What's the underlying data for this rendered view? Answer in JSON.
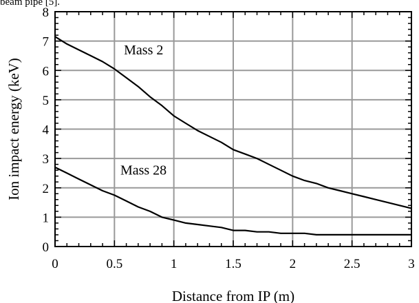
{
  "top_text": "beam pipe [5].",
  "chart_data": {
    "type": "line",
    "title": "",
    "xlabel": "Distance from IP (m)",
    "ylabel": "Ion impact energy (keV)",
    "xlim": [
      0,
      3
    ],
    "ylim": [
      0,
      8
    ],
    "x_ticks": [
      0,
      0.5,
      1,
      1.5,
      2,
      2.5,
      3
    ],
    "x_tick_labels": [
      "0",
      "0.5",
      "1",
      "1.5",
      "2",
      "2.5",
      "3"
    ],
    "y_ticks": [
      0,
      1,
      2,
      3,
      4,
      5,
      6,
      7,
      8
    ],
    "y_tick_labels": [
      "0",
      "1",
      "2",
      "3",
      "4",
      "5",
      "6",
      "7",
      "8"
    ],
    "grid": true,
    "legend": "none",
    "series": [
      {
        "name": "Mass 2",
        "label_at": [
          0.58,
          6.55
        ],
        "x": [
          0,
          0.1,
          0.2,
          0.3,
          0.4,
          0.5,
          0.6,
          0.7,
          0.8,
          0.9,
          1.0,
          1.1,
          1.2,
          1.3,
          1.4,
          1.5,
          1.6,
          1.7,
          1.8,
          1.9,
          2.0,
          2.1,
          2.2,
          2.3,
          2.4,
          2.5,
          2.6,
          2.7,
          2.8,
          2.9,
          3.0
        ],
        "y": [
          7.15,
          6.9,
          6.7,
          6.5,
          6.3,
          6.05,
          5.75,
          5.45,
          5.1,
          4.8,
          4.45,
          4.2,
          3.95,
          3.75,
          3.55,
          3.3,
          3.15,
          3.0,
          2.8,
          2.6,
          2.4,
          2.25,
          2.15,
          2.0,
          1.9,
          1.8,
          1.7,
          1.6,
          1.5,
          1.4,
          1.3
        ]
      },
      {
        "name": "Mass 28",
        "label_at": [
          0.55,
          2.45
        ],
        "x": [
          0,
          0.1,
          0.2,
          0.3,
          0.4,
          0.5,
          0.6,
          0.7,
          0.8,
          0.9,
          1.0,
          1.1,
          1.2,
          1.3,
          1.4,
          1.5,
          1.6,
          1.7,
          1.8,
          1.9,
          2.0,
          2.1,
          2.2,
          2.3,
          2.4,
          2.5,
          2.6,
          2.7,
          2.8,
          2.9,
          3.0
        ],
        "y": [
          2.7,
          2.5,
          2.3,
          2.1,
          1.9,
          1.75,
          1.55,
          1.35,
          1.2,
          1.0,
          0.9,
          0.8,
          0.75,
          0.7,
          0.65,
          0.55,
          0.55,
          0.5,
          0.5,
          0.45,
          0.45,
          0.45,
          0.4,
          0.4,
          0.4,
          0.4,
          0.4,
          0.4,
          0.4,
          0.4,
          0.4
        ]
      }
    ],
    "line_color": "#000000",
    "grid_color": "#999999"
  }
}
